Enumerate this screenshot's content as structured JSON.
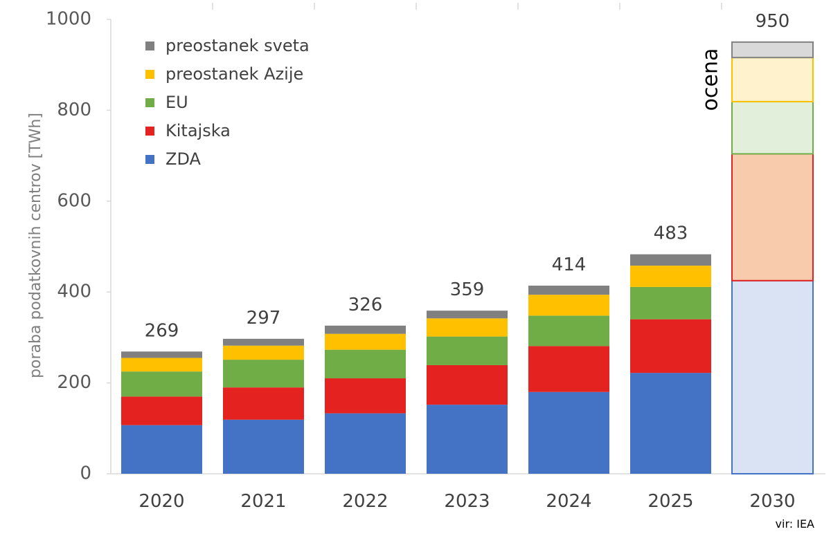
{
  "chart_data": {
    "type": "bar",
    "stacked": true,
    "categories": [
      "2020",
      "2021",
      "2022",
      "2023",
      "2024",
      "2025",
      "2030"
    ],
    "series": [
      {
        "name": "ZDA",
        "color": "#4472c4",
        "estimate_color": "#dae3f3",
        "values": [
          107,
          119,
          133,
          152,
          180,
          222,
          425
        ]
      },
      {
        "name": "Kitajska",
        "color": "#e42320",
        "estimate_color": "#f8cbad",
        "values": [
          63,
          71,
          77,
          87,
          101,
          118,
          279
        ]
      },
      {
        "name": "EU",
        "color": "#70ad47",
        "estimate_color": "#e2efda",
        "values": [
          55,
          61,
          63,
          63,
          67,
          71,
          115
        ]
      },
      {
        "name": "preostanek Azije",
        "color": "#ffc000",
        "estimate_color": "#fff2cc",
        "values": [
          30,
          31,
          35,
          40,
          46,
          47,
          97
        ]
      },
      {
        "name": "preostanek sveta",
        "color": "#808080",
        "estimate_color": "#d9d9d9",
        "values": [
          14,
          15,
          18,
          17,
          20,
          25,
          34
        ]
      }
    ],
    "totals": [
      "269",
      "297",
      "326",
      "359",
      "414",
      "483",
      "950"
    ],
    "ylabel": "poraba podatkovnih centrov [TWh]",
    "xlabel": "",
    "ylim": [
      0,
      1000
    ],
    "yticks": [
      "0",
      "200",
      "400",
      "600",
      "800",
      "1000"
    ],
    "ytick_values": [
      0,
      200,
      400,
      600,
      800,
      1000
    ],
    "estimate_category": "2030",
    "estimate_label": "ocena",
    "source_note": "vir: IEA",
    "legend_position": "top-left",
    "legend_order": [
      "preostanek sveta",
      "preostanek Azije",
      "EU",
      "Kitajska",
      "ZDA"
    ],
    "grid": false
  }
}
